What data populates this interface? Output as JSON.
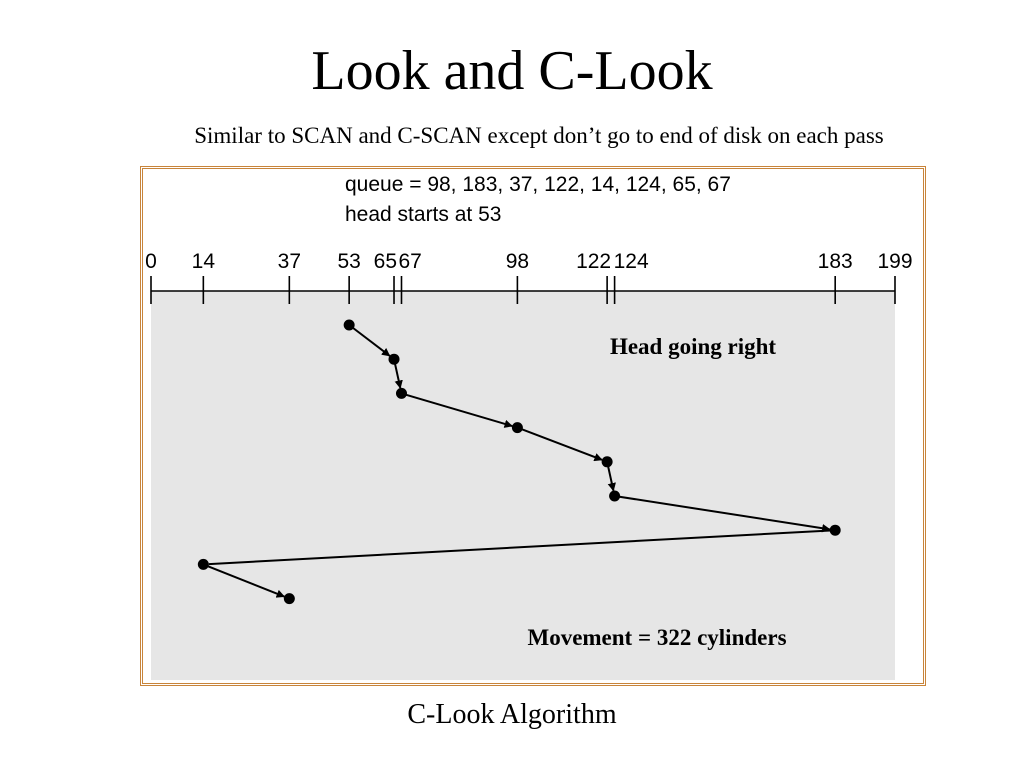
{
  "slide": {
    "title": "Look and C-Look",
    "subtitle": "Similar to SCAN and C-SCAN except don’t go to end of disk on each pass",
    "caption": "C-Look Algorithm"
  },
  "figure": {
    "queue_text": "queue = 98, 183, 37, 122, 14, 124, 65, 67",
    "head_text": "head starts at 53",
    "direction_label": "Head going right",
    "movement_label": "Movement = 322 cylinders",
    "axis_min": 0,
    "axis_max": 199,
    "ticks": [
      0,
      14,
      37,
      53,
      65,
      67,
      98,
      122,
      124,
      183,
      199
    ],
    "head_path": [
      53,
      65,
      67,
      98,
      122,
      124,
      183,
      14,
      37
    ],
    "colors": {
      "frame": "#c8843a",
      "panel": "#e6e6e6",
      "ink": "#000000"
    }
  }
}
